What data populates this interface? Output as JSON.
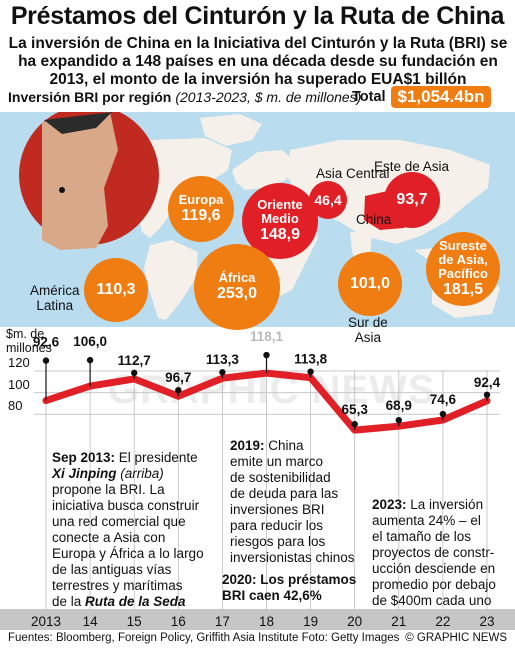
{
  "title": "Préstamos del Cinturón y la Ruta de China",
  "subtitle": "La inversión de China en la Iniciativa del Cinturón y la Ruta (BRI) se ha expandido a 148 países en una década desde su fundación en 2013, el monto de la inversión ha superado EUA$1 billón",
  "regions_header": {
    "label": "Inversión BRI por región",
    "period": "(2013-2023, $ m. de millones)",
    "total_label": "Total",
    "total_value": "$1,054.4bn"
  },
  "regions": [
    {
      "name": "Europa",
      "value": "119,6",
      "color": "#f07d12"
    },
    {
      "name": "Oriente Medio",
      "value": "148,9",
      "color": "#e01f26"
    },
    {
      "name": "Asia Central",
      "value": "46,4",
      "color": "#e01f26"
    },
    {
      "name": "Este de Asia",
      "value": "93,7",
      "color": "#e01f26"
    },
    {
      "name": "América Latina",
      "value": "110,3",
      "color": "#f07d12"
    },
    {
      "name": "África",
      "value": "253,0",
      "color": "#f07d12"
    },
    {
      "name": "Sur de Asia",
      "value": "101,0",
      "color": "#f07d12"
    },
    {
      "name": "Sureste de Asia, Pacífico",
      "value": "181,5",
      "color": "#f07d12"
    }
  ],
  "map_labels": {
    "asia_central": "Asia Central",
    "este_asia": "Este de Asia",
    "china": "China",
    "america_latina_1": "América",
    "america_latina_2": "Latina",
    "sur_asia_1": "Sur de",
    "sur_asia_2": "Asia",
    "oriente_1": "Oriente",
    "oriente_2": "Medio",
    "sureste_1": "Sureste",
    "sureste_2": "de Asia,",
    "sureste_3": "Pacífico"
  },
  "chart_data": {
    "type": "line",
    "ylabel": "$m. de millones",
    "yticks": [
      80,
      100,
      120
    ],
    "ylim": [
      75,
      125
    ],
    "x": [
      "2013",
      "14",
      "15",
      "16",
      "17",
      "18",
      "19",
      "20",
      "21",
      "22",
      "23"
    ],
    "points": [
      {
        "year": 2013.0,
        "value": 92.6,
        "label": "92,6"
      },
      {
        "year": 2014.0,
        "value": 106.0,
        "label": "106,0"
      },
      {
        "year": 2015.0,
        "value": 112.7,
        "label": "112,7"
      },
      {
        "year": 2016.0,
        "value": 96.7,
        "label": "96,7"
      },
      {
        "year": 2017.0,
        "value": 113.3,
        "label": "113,3"
      },
      {
        "year": 2018.0,
        "value": 118.1,
        "label": "118,1"
      },
      {
        "year": 2019.0,
        "value": 113.8,
        "label": "113,8"
      },
      {
        "year": 2020.0,
        "value": 65.3,
        "label": "65,3"
      },
      {
        "year": 2021.0,
        "value": 68.9,
        "label": "68,9"
      },
      {
        "year": 2022.0,
        "value": 74.6,
        "label": "74,6"
      },
      {
        "year": 2023.0,
        "value": 92.4,
        "label": "92,4"
      }
    ]
  },
  "notes": {
    "sep2013_head": "Sep 2013:",
    "sep2013_a": " El presidente",
    "sep2013_name": "Xi Jinping",
    "sep2013_b": " (arriba)",
    "sep2013_lines": [
      "propone la BRI. La",
      "iniciativa busca construir",
      "una red comercial que",
      "conecte a Asia con",
      "Europa y África a lo largo",
      "de las antiguas vías",
      "terrestres y marítimas"
    ],
    "sep2013_last_a": "de la ",
    "sep2013_last_b": "Ruta de la Seda",
    "y2019_head": "2019:",
    "y2019_a": " China",
    "y2019_lines": [
      "emite un marco",
      "de sostenibilidad",
      "de deuda para las",
      "inversiones BRI",
      "para reducir los",
      "riesgos para los",
      "inversionistas chinos"
    ],
    "y2020_lines": [
      "2020: Los préstamos",
      "BRI caen 42,6%"
    ],
    "y2023_head": "2023:",
    "y2023_a": " La inversión",
    "y2023_lines": [
      "aumenta 24% – el",
      "el tamaño de los",
      "proyectos de constr-",
      "ucción desciende en",
      "promedio por debajo",
      "de $400m cada uno"
    ]
  },
  "watermark": "GRAPHIC NEWS",
  "footer": {
    "sources": "Fuentes: Bloomberg, Foreign Policy, Griffith Asia Institute   Foto: Getty Images",
    "credit": "© GRAPHIC NEWS"
  }
}
